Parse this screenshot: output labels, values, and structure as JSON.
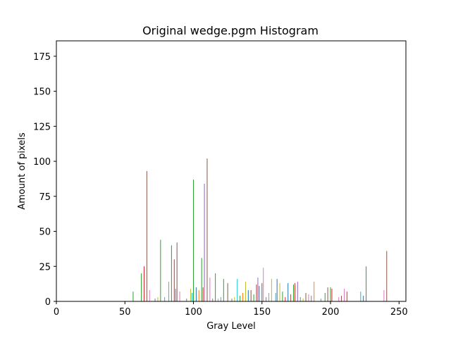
{
  "chart_data": {
    "type": "bar",
    "title": "Original wedge.pgm Histogram",
    "xlabel": "Gray Level",
    "ylabel": "Amount of pixels",
    "xlim": [
      0,
      255
    ],
    "ylim": [
      0,
      186
    ],
    "xticks": [
      0,
      50,
      100,
      150,
      200,
      250
    ],
    "yticks": [
      0,
      25,
      50,
      75,
      100,
      125,
      150,
      175
    ],
    "grid": false,
    "legend": "none",
    "bars": [
      {
        "x": 56,
        "value": 7,
        "color": "#2ca02c"
      },
      {
        "x": 62,
        "value": 20,
        "color": "#2ca02c"
      },
      {
        "x": 64,
        "value": 25,
        "color": "#d62728"
      },
      {
        "x": 66,
        "value": 93,
        "color": "#8c564b"
      },
      {
        "x": 68,
        "value": 8,
        "color": "#e377c2"
      },
      {
        "x": 72,
        "value": 2,
        "color": "#7f7f7f"
      },
      {
        "x": 74,
        "value": 3,
        "color": "#bcbd22"
      },
      {
        "x": 76,
        "value": 44,
        "color": "#2ca02c"
      },
      {
        "x": 79,
        "value": 3,
        "color": "#17becf"
      },
      {
        "x": 82,
        "value": 14,
        "color": "#ff7f0e"
      },
      {
        "x": 84,
        "value": 40,
        "color": "#2ca02c"
      },
      {
        "x": 86,
        "value": 30,
        "color": "#d62728"
      },
      {
        "x": 87,
        "value": 9,
        "color": "#9467bd"
      },
      {
        "x": 88,
        "value": 42,
        "color": "#8c564b"
      },
      {
        "x": 90,
        "value": 7,
        "color": "#e377c2"
      },
      {
        "x": 95,
        "value": 2,
        "color": "#7f7f7f"
      },
      {
        "x": 98,
        "value": 9,
        "color": "#bcbd22"
      },
      {
        "x": 99,
        "value": 6,
        "color": "#17becf"
      },
      {
        "x": 100,
        "value": 87,
        "color": "#2ca02c"
      },
      {
        "x": 102,
        "value": 10,
        "color": "#1f77b4"
      },
      {
        "x": 104,
        "value": 8,
        "color": "#ff7f0e"
      },
      {
        "x": 106,
        "value": 31,
        "color": "#2ca02c"
      },
      {
        "x": 107,
        "value": 10,
        "color": "#d62728"
      },
      {
        "x": 108,
        "value": 84,
        "color": "#9467bd"
      },
      {
        "x": 110,
        "value": 102,
        "color": "#8c564b"
      },
      {
        "x": 112,
        "value": 17,
        "color": "#e377c2"
      },
      {
        "x": 114,
        "value": 2,
        "color": "#7f7f7f"
      },
      {
        "x": 116,
        "value": 20,
        "color": "#2ca02c"
      },
      {
        "x": 118,
        "value": 2,
        "color": "#bcbd22"
      },
      {
        "x": 120,
        "value": 3,
        "color": "#17becf"
      },
      {
        "x": 122,
        "value": 16,
        "color": "#2ca02c"
      },
      {
        "x": 125,
        "value": 13,
        "color": "#8c564b"
      },
      {
        "x": 128,
        "value": 2,
        "color": "#7f7f7f"
      },
      {
        "x": 130,
        "value": 3,
        "color": "#bcbd22"
      },
      {
        "x": 132,
        "value": 16,
        "color": "#17becf"
      },
      {
        "x": 134,
        "value": 4,
        "color": "#2ca02c"
      },
      {
        "x": 136,
        "value": 6,
        "color": "#ff7f0e"
      },
      {
        "x": 138,
        "value": 14,
        "color": "#bcbd22"
      },
      {
        "x": 140,
        "value": 8,
        "color": "#1f77b4"
      },
      {
        "x": 142,
        "value": 8,
        "color": "#8c564b"
      },
      {
        "x": 144,
        "value": 5,
        "color": "#2ca02c"
      },
      {
        "x": 146,
        "value": 12,
        "color": "#d62728"
      },
      {
        "x": 147,
        "value": 17,
        "color": "#9467bd"
      },
      {
        "x": 148,
        "value": 11,
        "color": "#1f77b4"
      },
      {
        "x": 150,
        "value": 13,
        "color": "#8c564b"
      },
      {
        "x": 151,
        "value": 24,
        "color": "#e377c2"
      },
      {
        "x": 153,
        "value": 3,
        "color": "#7f7f7f"
      },
      {
        "x": 155,
        "value": 6,
        "color": "#e377c2"
      },
      {
        "x": 157,
        "value": 16,
        "color": "#bcbd22"
      },
      {
        "x": 160,
        "value": 6,
        "color": "#17becf"
      },
      {
        "x": 161,
        "value": 16,
        "color": "#1f77b4"
      },
      {
        "x": 163,
        "value": 13,
        "color": "#bcbd22"
      },
      {
        "x": 165,
        "value": 7,
        "color": "#2ca02c"
      },
      {
        "x": 167,
        "value": 3,
        "color": "#d62728"
      },
      {
        "x": 169,
        "value": 13,
        "color": "#1f77b4"
      },
      {
        "x": 171,
        "value": 5,
        "color": "#8c564b"
      },
      {
        "x": 173,
        "value": 12,
        "color": "#2ca02c"
      },
      {
        "x": 174,
        "value": 13,
        "color": "#d62728"
      },
      {
        "x": 176,
        "value": 14,
        "color": "#9467bd"
      },
      {
        "x": 178,
        "value": 3,
        "color": "#7f7f7f"
      },
      {
        "x": 180,
        "value": 2,
        "color": "#bcbd22"
      },
      {
        "x": 182,
        "value": 6,
        "color": "#8c564b"
      },
      {
        "x": 184,
        "value": 5,
        "color": "#e377c2"
      },
      {
        "x": 186,
        "value": 4,
        "color": "#7f7f7f"
      },
      {
        "x": 188,
        "value": 14,
        "color": "#ff7f0e"
      },
      {
        "x": 193,
        "value": 2,
        "color": "#17becf"
      },
      {
        "x": 196,
        "value": 6,
        "color": "#2ca02c"
      },
      {
        "x": 198,
        "value": 10,
        "color": "#8c564b"
      },
      {
        "x": 200,
        "value": 10,
        "color": "#2ca02c"
      },
      {
        "x": 201,
        "value": 9,
        "color": "#d62728"
      },
      {
        "x": 206,
        "value": 3,
        "color": "#e377c2"
      },
      {
        "x": 208,
        "value": 4,
        "color": "#8c564b"
      },
      {
        "x": 210,
        "value": 9,
        "color": "#e377c2"
      },
      {
        "x": 212,
        "value": 7,
        "color": "#8c564b"
      },
      {
        "x": 222,
        "value": 7,
        "color": "#17becf"
      },
      {
        "x": 224,
        "value": 4,
        "color": "#1f77b4"
      },
      {
        "x": 226,
        "value": 25,
        "color": "#2ca02c"
      },
      {
        "x": 239,
        "value": 8,
        "color": "#e377c2"
      },
      {
        "x": 241,
        "value": 36,
        "color": "#8c564b"
      }
    ]
  }
}
